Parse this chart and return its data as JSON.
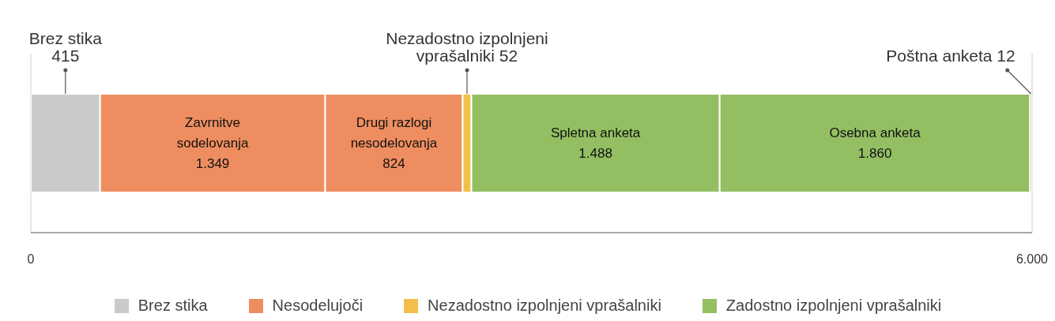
{
  "chart_data": {
    "type": "bar",
    "orientation": "horizontal",
    "stacked": true,
    "categories": [
      null
    ],
    "xlim": [
      0,
      6000
    ],
    "xticks": [
      0,
      {
        "value": 6000,
        "label": "6.000"
      }
    ],
    "grid": "x",
    "legend": "bottom",
    "series": [
      {
        "name": "Brez stika",
        "color": "#c9cacc",
        "values": [
          415
        ],
        "value_labels": [
          "Brez stika\n415"
        ]
      },
      {
        "name": "Nesodelujoči",
        "color": "#ee8e60",
        "values": [
          1349
        ],
        "value_labels": [
          "Zavrnitve\nsodelovanja\n1.349"
        ]
      },
      {
        "color": "#ee8e60",
        "values": [
          824
        ],
        "value_labels": [
          "Drugi razlogi\nnesodelovanja\n824"
        ]
      },
      {
        "name": "Nezadostno izpolnjeni vprašalniki",
        "color": "#f2c04a",
        "values": [
          52
        ],
        "value_labels": [
          "Nezadostno izpolnjeni\nvprašalniki 52"
        ]
      },
      {
        "name": "Zadostno izpolnjeni vprašalniki",
        "color": "#93bf62",
        "values": [
          1488
        ],
        "value_labels": [
          "Spletna anketa\n1.488"
        ]
      },
      {
        "color": "#93bf62",
        "values": [
          1860
        ],
        "value_labels": [
          "Osebna anketa\n1.860"
        ]
      },
      {
        "color": "#93bf62",
        "values": [
          12
        ],
        "value_labels": [
          "Poštna anketa 12"
        ]
      }
    ]
  }
}
